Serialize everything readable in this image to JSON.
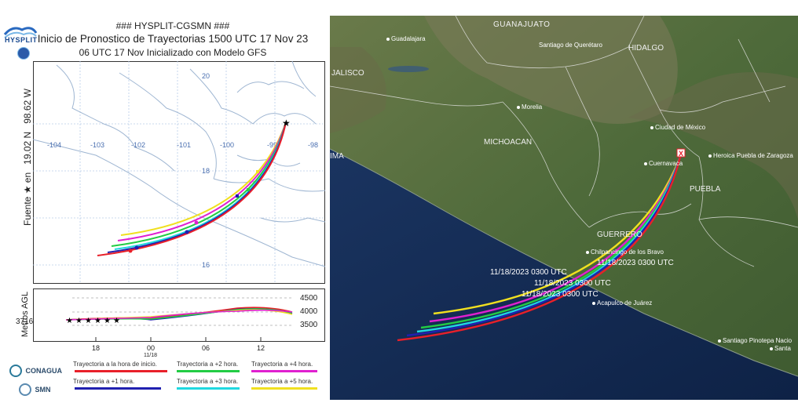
{
  "header": {
    "line1": "### HYSPLIT-CGSMN ###",
    "line2": "Inicio de Pronostico de Trayectorias 1500 UTC 17 Nov 23",
    "line3": "06 UTC 17 Nov    Inicializado con Modelo GFS",
    "logo_text": "HYSPLIT"
  },
  "source_axis": {
    "label_prefix": "Fuente ★ en",
    "lat": "19.02 N",
    "lon": "98.62 W"
  },
  "map_axes": {
    "lon_ticks": [
      "-104",
      "-103",
      "-102",
      "-101",
      "-100",
      "-99",
      "-98"
    ],
    "lat_ticks": [
      "20",
      "18",
      "16"
    ]
  },
  "height_panel": {
    "ylabel": "Metros AGL",
    "start_height": "3716",
    "right_ticks": [
      "4500",
      "4000",
      "3500"
    ],
    "time_ticks": [
      "18",
      "00",
      "06",
      "12"
    ],
    "date_label": "11/18"
  },
  "legend": [
    {
      "label": "Trayectoria a la hora de inicio.",
      "color": "#e8202a"
    },
    {
      "label": "Trayectoria a +2 hora.",
      "color": "#22cc44"
    },
    {
      "label": "Trayectoria a +4 hora.",
      "color": "#e020d0"
    },
    {
      "label": "Trayectoria a +1 hora.",
      "color": "#2020b0"
    },
    {
      "label": "Trayectoria a +3 hora.",
      "color": "#20d8e0"
    },
    {
      "label": "Trayectoria a +5 hora.",
      "color": "#f0e020"
    }
  ],
  "agency_logos": {
    "conagua": "CONAGUA",
    "smn": "SMN"
  },
  "satellite": {
    "places": [
      {
        "name": "GUANAJUATO",
        "kind": "state"
      },
      {
        "name": "Guadalajara",
        "kind": "city"
      },
      {
        "name": "Santiago de Querétaro",
        "kind": "city"
      },
      {
        "name": "HIDALGO",
        "kind": "state"
      },
      {
        "name": "JALISCO",
        "kind": "state"
      },
      {
        "name": "Morelia",
        "kind": "city"
      },
      {
        "name": "MICHOACAN",
        "kind": "state"
      },
      {
        "name": "Ciudad de México",
        "kind": "city"
      },
      {
        "name": "Cuernavaca",
        "kind": "city"
      },
      {
        "name": "Heroica Puebla de Zaragoza",
        "kind": "city"
      },
      {
        "name": "PUEBLA",
        "kind": "state"
      },
      {
        "name": "GUERRERO",
        "kind": "state"
      },
      {
        "name": "Chilpancingo de los Bravo",
        "kind": "city"
      },
      {
        "name": "Acapulco de Juárez",
        "kind": "city"
      },
      {
        "name": "Santiago Pinotepa Nacio",
        "kind": "city"
      },
      {
        "name": "Santa",
        "kind": "city"
      },
      {
        "name": "IMA",
        "kind": "state"
      }
    ],
    "utc_labels": [
      "11/18/2023 0300 UTC",
      "11/18/2023 0300 UTC",
      "11/18/2023 0300 UTC",
      "11/18/2023 0300 UTC"
    ],
    "source_marker": "X"
  }
}
